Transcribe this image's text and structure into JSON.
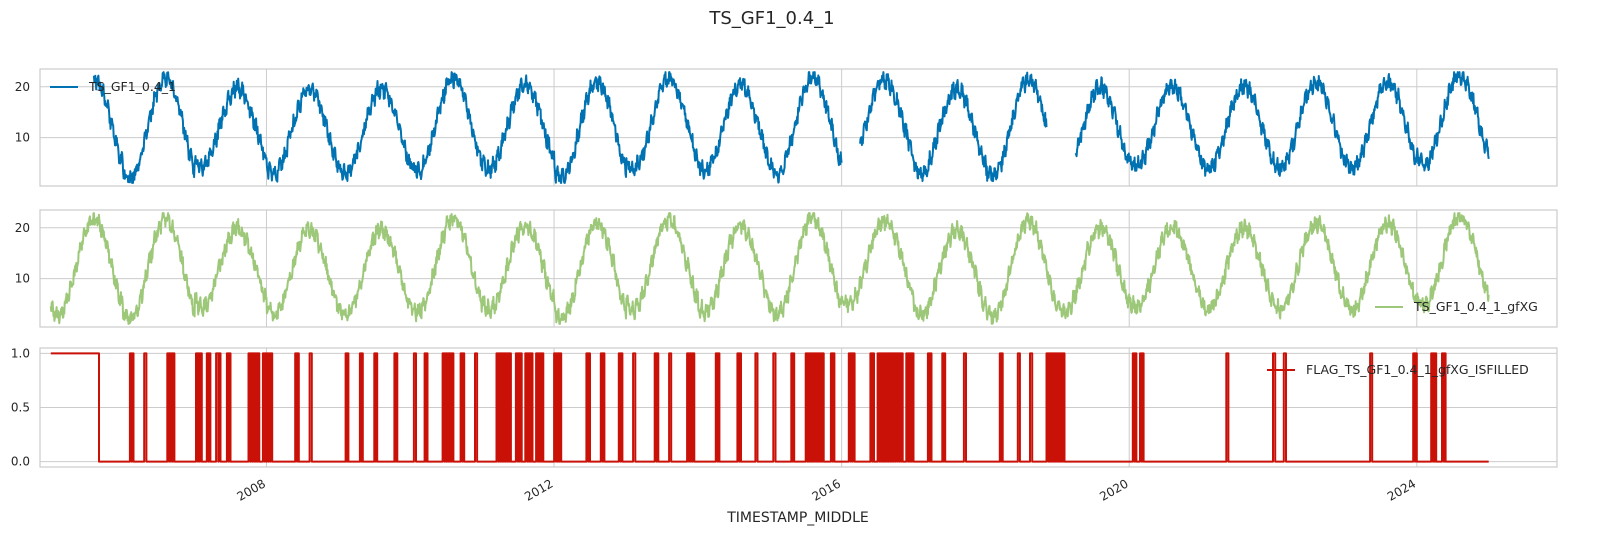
{
  "chart_data": {
    "type": "line",
    "title": "TS_GF1_0.4_1",
    "xlabel": "TIMESTAMP_MIDDLE",
    "x_range": [
      2004.85,
      2025.95
    ],
    "x_ticks": [
      "2008",
      "2012",
      "2016",
      "2020",
      "2024"
    ],
    "grid": true,
    "panels": [
      {
        "series": [
          {
            "name": "TS_GF1_0.4_1",
            "color": "#0072b2",
            "start": 2005.6,
            "end": 2025.0,
            "gaps": [
              [
                2016.0,
                2016.25
              ],
              [
                2018.85,
                2019.25
              ]
            ],
            "description_values": "seasonal cycle, min ~2-5 in winter, max ~19-22 in summer"
          }
        ],
        "ylim": [
          0.5,
          23.5
        ],
        "yticks": [
          "10",
          "20"
        ],
        "legend": "upper left"
      },
      {
        "series": [
          {
            "name": "TS_GF1_0.4_1_gfXG",
            "color": "#9dc879",
            "start": 2005.0,
            "end": 2025.0
          }
        ],
        "ylim": [
          0.5,
          23.5
        ],
        "yticks": [
          "10",
          "20"
        ],
        "legend": "lower right"
      },
      {
        "series": [
          {
            "name": "FLAG_TS_GF1_0.4_1_gfXG_ISFILLED",
            "color": "#c91108",
            "start": 2005.0,
            "end": 2025.0
          }
        ],
        "ylim": [
          -0.05,
          1.05
        ],
        "yticks": [
          "0.0",
          "0.5",
          "1.0"
        ],
        "legend": "upper right"
      }
    ],
    "seasonal_annual": [
      {
        "year": 2005,
        "min": 3.0,
        "max": 21.5
      },
      {
        "year": 2006,
        "min": 2.0,
        "max": 21.8
      },
      {
        "year": 2007,
        "min": 4.5,
        "max": 19.8
      },
      {
        "year": 2008,
        "min": 3.0,
        "max": 19.5
      },
      {
        "year": 2009,
        "min": 3.0,
        "max": 19.7
      },
      {
        "year": 2010,
        "min": 3.5,
        "max": 21.7
      },
      {
        "year": 2011,
        "min": 4.0,
        "max": 20.5
      },
      {
        "year": 2012,
        "min": 2.0,
        "max": 21.0
      },
      {
        "year": 2013,
        "min": 4.0,
        "max": 21.6
      },
      {
        "year": 2014,
        "min": 3.5,
        "max": 20.3
      },
      {
        "year": 2015,
        "min": 3.0,
        "max": 22.0
      },
      {
        "year": 2016,
        "min": 5.0,
        "max": 21.3
      },
      {
        "year": 2017,
        "min": 3.0,
        "max": 19.5
      },
      {
        "year": 2018,
        "min": 2.5,
        "max": 21.3
      },
      {
        "year": 2019,
        "min": 3.5,
        "max": 20.0
      },
      {
        "year": 2020,
        "min": 4.5,
        "max": 20.2
      },
      {
        "year": 2021,
        "min": 4.0,
        "max": 20.0
      },
      {
        "year": 2022,
        "min": 4.0,
        "max": 20.7
      },
      {
        "year": 2023,
        "min": 4.0,
        "max": 20.8
      },
      {
        "year": 2024,
        "min": 5.0,
        "max": 22.3
      }
    ],
    "flag_filled_periods": [
      [
        2005.0,
        2005.67
      ],
      [
        2006.1,
        2006.15
      ],
      [
        2006.3,
        2006.33
      ],
      [
        2006.62,
        2006.72
      ],
      [
        2007.02,
        2007.1
      ],
      [
        2007.17,
        2007.22
      ],
      [
        2007.3,
        2007.36
      ],
      [
        2007.45,
        2007.5
      ],
      [
        2007.75,
        2007.9
      ],
      [
        2007.95,
        2008.08
      ],
      [
        2008.4,
        2008.45
      ],
      [
        2008.6,
        2008.63
      ],
      [
        2009.1,
        2009.14
      ],
      [
        2009.3,
        2009.34
      ],
      [
        2009.5,
        2009.54
      ],
      [
        2009.78,
        2009.82
      ],
      [
        2010.05,
        2010.08
      ],
      [
        2010.2,
        2010.24
      ],
      [
        2010.45,
        2010.6
      ],
      [
        2010.7,
        2010.75
      ],
      [
        2010.9,
        2010.93
      ],
      [
        2011.2,
        2011.4
      ],
      [
        2011.47,
        2011.55
      ],
      [
        2011.6,
        2011.7
      ],
      [
        2011.75,
        2011.85
      ],
      [
        2012.0,
        2012.1
      ],
      [
        2012.45,
        2012.5
      ],
      [
        2012.65,
        2012.7
      ],
      [
        2012.9,
        2012.95
      ],
      [
        2013.1,
        2013.13
      ],
      [
        2013.4,
        2013.45
      ],
      [
        2013.6,
        2013.63
      ],
      [
        2013.85,
        2013.95
      ],
      [
        2014.25,
        2014.3
      ],
      [
        2014.55,
        2014.6
      ],
      [
        2014.8,
        2014.83
      ],
      [
        2015.05,
        2015.08
      ],
      [
        2015.3,
        2015.34
      ],
      [
        2015.5,
        2015.75
      ],
      [
        2015.85,
        2015.9
      ],
      [
        2016.1,
        2016.18
      ],
      [
        2016.4,
        2016.45
      ],
      [
        2016.5,
        2016.85
      ],
      [
        2016.9,
        2017.0
      ],
      [
        2017.2,
        2017.25
      ],
      [
        2017.4,
        2017.44
      ],
      [
        2017.7,
        2017.73
      ],
      [
        2018.2,
        2018.24
      ],
      [
        2018.45,
        2018.48
      ],
      [
        2018.62,
        2018.65
      ],
      [
        2018.85,
        2019.1
      ],
      [
        2020.05,
        2020.1
      ],
      [
        2020.15,
        2020.2
      ],
      [
        2021.35,
        2021.38
      ],
      [
        2022.0,
        2022.03
      ],
      [
        2022.15,
        2022.18
      ],
      [
        2023.35,
        2023.38
      ],
      [
        2023.95,
        2024.0
      ],
      [
        2024.2,
        2024.27
      ],
      [
        2024.35,
        2024.4
      ]
    ]
  }
}
